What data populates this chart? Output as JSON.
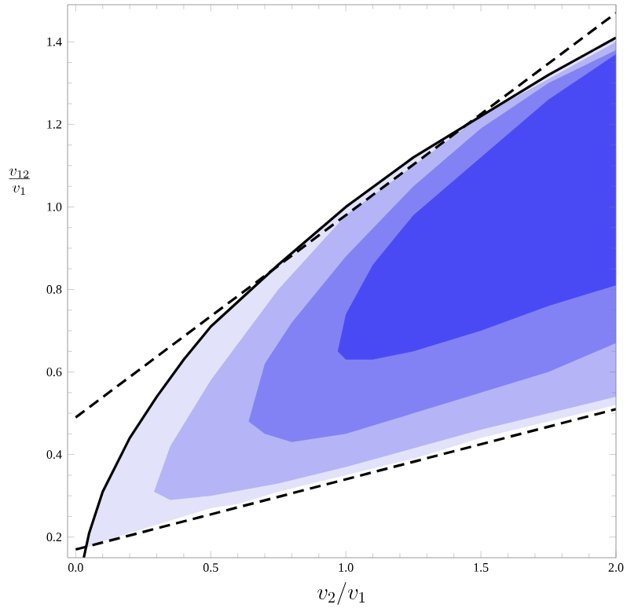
{
  "chart_data": {
    "type": "line",
    "xlabel": "v_2/v_1",
    "ylabel": "\\frac{v_{12}}{v_1}",
    "xlim": [
      -0.03,
      2.0
    ],
    "ylim": [
      0.15,
      1.49
    ],
    "xticks": [
      {
        "value": 0,
        "label": "0.0"
      },
      0.5,
      {
        "value": 1,
        "label": "1.0"
      },
      1.5,
      {
        "value": 2,
        "label": "2.0"
      }
    ],
    "yticks": [
      0.2,
      0.4,
      0.6,
      0.8,
      {
        "value": 1,
        "label": "1.0"
      },
      1.2,
      1.4
    ],
    "series": [
      {
        "type": "line",
        "color": "#e2e2fb",
        "x": [
          0.03,
          0.1,
          0.2,
          0.3,
          0.4,
          0.5,
          0.6,
          0.75,
          1.0,
          1.25,
          1.5,
          1.75,
          2.0
        ],
        "values": [
          null,
          null,
          null,
          null,
          null,
          null,
          null,
          null,
          null,
          null,
          null,
          null,
          null
        ],
        "upper": [
          0.17,
          0.31,
          0.44,
          0.54,
          0.63,
          0.71,
          0.77,
          0.86,
          1.0,
          1.12,
          1.22,
          1.32,
          1.41
        ],
        "lower": [
          0.17,
          0.19,
          0.21,
          0.23,
          0.25,
          0.27,
          0.28,
          0.31,
          0.35,
          0.39,
          0.44,
          0.48,
          0.52
        ]
      },
      {
        "type": "line",
        "color": "#b4b4f7",
        "x": [
          0.29,
          0.35,
          0.5,
          0.75,
          1.0,
          1.5,
          2.0
        ],
        "values": [
          null,
          null,
          null,
          null,
          null,
          null,
          null
        ],
        "upper": [
          0.31,
          0.42,
          0.58,
          0.8,
          0.98,
          1.22,
          1.4
        ],
        "lower": [
          0.31,
          0.29,
          0.3,
          0.33,
          0.37,
          0.46,
          0.54
        ]
      },
      {
        "type": "line",
        "color": "#8282f5",
        "x": [
          0.64,
          0.7,
          0.8,
          1.0,
          1.25,
          1.5,
          1.75,
          2.0
        ],
        "values": [
          null,
          null,
          null,
          null,
          null,
          null,
          null,
          null
        ],
        "upper": [
          0.48,
          0.62,
          0.72,
          0.88,
          1.05,
          1.19,
          1.3,
          1.38
        ],
        "lower": [
          0.48,
          0.45,
          0.43,
          0.45,
          0.5,
          0.55,
          0.6,
          0.67
        ]
      },
      {
        "type": "line",
        "color": "#4a4af5",
        "x": [
          0.97,
          1.0,
          1.1,
          1.25,
          1.5,
          1.75,
          2.0
        ],
        "values": [
          null,
          null,
          null,
          null,
          null,
          null,
          null
        ],
        "upper": [
          0.65,
          0.74,
          0.86,
          0.98,
          1.12,
          1.26,
          1.37
        ],
        "lower": [
          0.65,
          0.63,
          0.63,
          0.65,
          0.7,
          0.76,
          0.81
        ]
      },
      {
        "type": "line",
        "color": "#000000",
        "line_style": "solid",
        "x": [
          0.03,
          0.05,
          0.1,
          0.2,
          0.3,
          0.4,
          0.5,
          0.6,
          0.75,
          1.0,
          1.25,
          1.5,
          1.75,
          2.0
        ],
        "values": [
          0.15,
          0.21,
          0.31,
          0.44,
          0.54,
          0.63,
          0.71,
          0.77,
          0.86,
          1.0,
          1.12,
          1.22,
          1.32,
          1.41
        ]
      },
      {
        "type": "line",
        "color": "#000000",
        "line_style": "dashed",
        "x": [
          0,
          2.0
        ],
        "values": [
          0.49,
          1.47
        ]
      },
      {
        "type": "line",
        "color": "#000000",
        "line_style": "dashed",
        "x": [
          0,
          2.0
        ],
        "values": [
          0.17,
          0.51
        ]
      }
    ]
  }
}
